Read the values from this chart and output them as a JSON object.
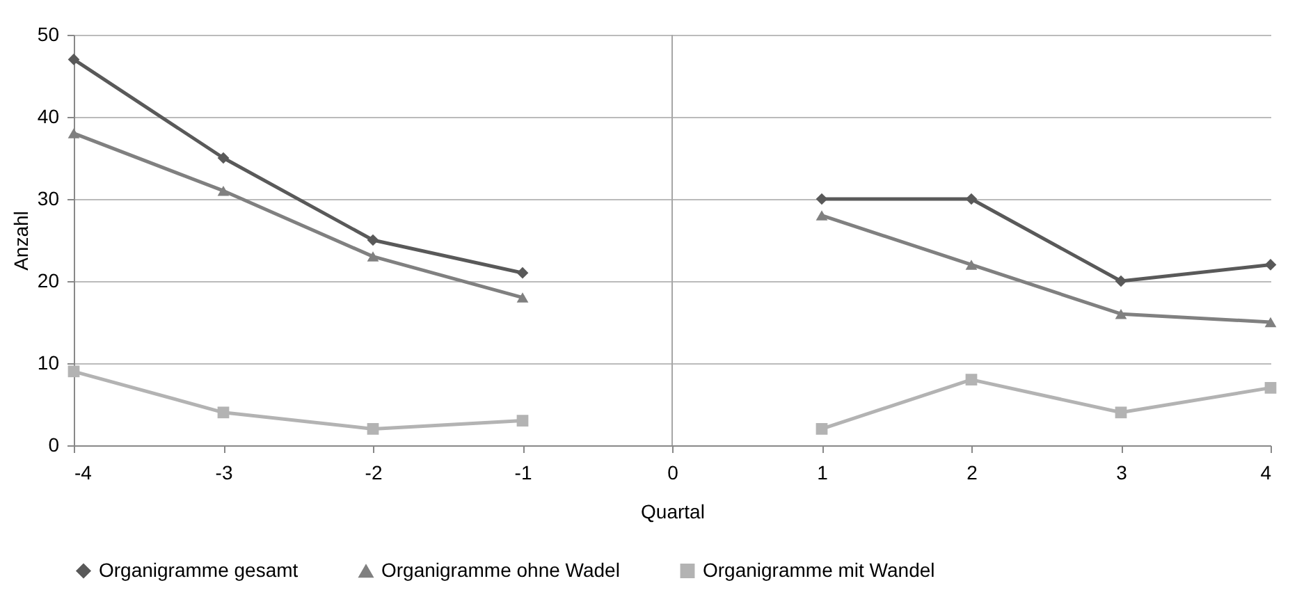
{
  "chart_data": {
    "type": "line",
    "xlabel": "Quartal",
    "ylabel": "Anzahl",
    "x": [
      -4,
      -3,
      -2,
      -1,
      0,
      1,
      2,
      3,
      4
    ],
    "xlim": [
      -4,
      4
    ],
    "xticks": [
      -4,
      -3,
      -2,
      -1,
      0,
      1,
      2,
      3,
      4
    ],
    "ylim": [
      0,
      50
    ],
    "yticks": [
      0,
      10,
      20,
      30,
      40,
      50
    ],
    "grid": "y",
    "legend": "bottom",
    "ref_lines": [
      {
        "axis": "x",
        "value": 0,
        "color": "#a6a6a6"
      }
    ],
    "series": [
      {
        "name": "Organigramme gesamt",
        "color": "#595959",
        "marker": "diamond",
        "values": [
          47,
          35,
          25,
          21,
          null,
          30,
          30,
          20,
          22
        ]
      },
      {
        "name": "Organigramme ohne Wadel",
        "color": "#808080",
        "marker": "triangle",
        "values": [
          38,
          31,
          23,
          18,
          null,
          28,
          22,
          16,
          15
        ]
      },
      {
        "name": "Organigramme mit Wandel",
        "color": "#b3b3b3",
        "marker": "square",
        "values": [
          9,
          4,
          2,
          3,
          null,
          2,
          8,
          4,
          7
        ]
      }
    ]
  }
}
